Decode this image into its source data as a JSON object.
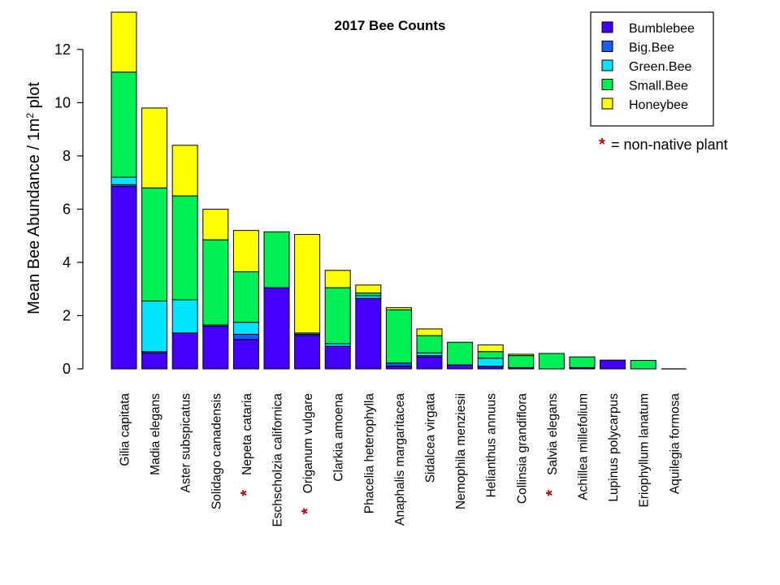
{
  "chart_data": {
    "type": "bar",
    "stacked": true,
    "title": "2017 Bee Counts",
    "ylabel_main": "Mean Bee Abundance / 1m",
    "ylabel_sup": "2",
    "ylabel_tail": " plot",
    "ylim": [
      0,
      13.4
    ],
    "yticks": [
      0,
      2,
      4,
      6,
      8,
      10,
      12
    ],
    "categories": [
      "Gilia capitata",
      "Madia elegans",
      "Aster subspicatus",
      "Solidago canadensis",
      "Nepeta cataria",
      "Eschscholzia californica",
      "Origanum vulgare",
      "Clarkia amoena",
      "Phacelia heterophylla",
      "Anaphalis margaritacea",
      "Sidalcea virgata",
      "Nemophila menziesii",
      "Helianthus annuus",
      "Collinsia grandiflora",
      "Salvia elegans",
      "Achillea millefolium",
      "Lupinus polycarpus",
      "Eriophyllum lanatum",
      "Aquilegia formosa"
    ],
    "non_native": [
      false,
      false,
      false,
      false,
      true,
      false,
      true,
      false,
      false,
      false,
      false,
      false,
      false,
      false,
      true,
      false,
      false,
      false,
      false
    ],
    "series": [
      {
        "name": "Bumblebee",
        "color": "#4400ff",
        "values": [
          6.85,
          0.6,
          1.35,
          1.6,
          1.1,
          3.05,
          1.25,
          0.85,
          2.65,
          0.1,
          0.45,
          0.15,
          0.1,
          0.05,
          0.0,
          0.05,
          0.33,
          0.0,
          0.0
        ]
      },
      {
        "name": "Big.Bee",
        "color": "#1a5cff",
        "values": [
          0.07,
          0.05,
          0.0,
          0.05,
          0.2,
          0.0,
          0.05,
          0.0,
          0.0,
          0.12,
          0.05,
          0.0,
          0.0,
          0.0,
          0.0,
          0.0,
          0.0,
          0.0,
          0.0
        ]
      },
      {
        "name": "Green.Bee",
        "color": "#00e5ff",
        "values": [
          0.28,
          1.9,
          1.25,
          0.0,
          0.45,
          0.0,
          0.0,
          0.1,
          0.1,
          0.0,
          0.1,
          0.0,
          0.3,
          0.0,
          0.0,
          0.0,
          0.0,
          0.0,
          0.0
        ]
      },
      {
        "name": "Small.Bee",
        "color": "#00ee55",
        "values": [
          3.95,
          4.25,
          3.9,
          3.2,
          1.9,
          2.1,
          0.05,
          2.1,
          0.1,
          2.0,
          0.65,
          0.85,
          0.25,
          0.45,
          0.58,
          0.4,
          0.0,
          0.32,
          0.0
        ]
      },
      {
        "name": "Honeybee",
        "color": "#ffff00",
        "values": [
          2.25,
          3.0,
          1.9,
          1.15,
          1.55,
          0.0,
          3.7,
          0.65,
          0.3,
          0.08,
          0.25,
          0.0,
          0.25,
          0.05,
          0.0,
          0.0,
          0.0,
          0.0,
          0.0
        ]
      }
    ],
    "legend_position": "top-right",
    "note_symbol": "*",
    "note_text": "= non-native plant"
  }
}
